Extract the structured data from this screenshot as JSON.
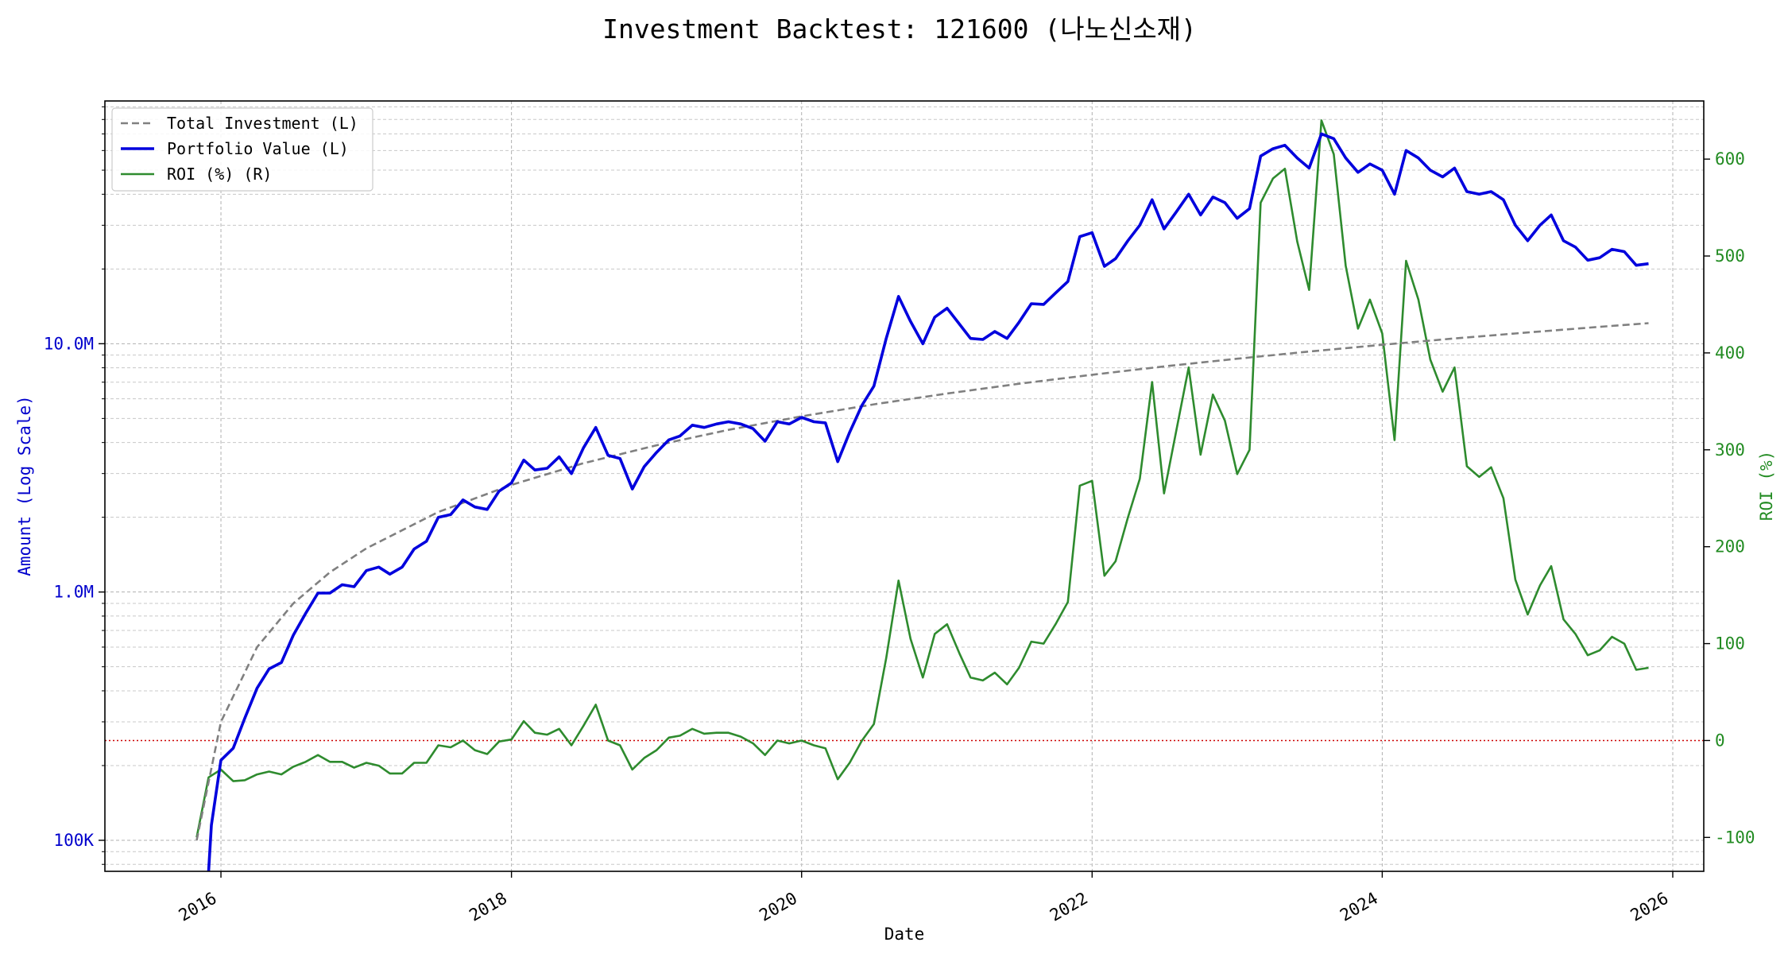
{
  "chart_data": {
    "type": "line",
    "title": "Investment Backtest: 121600 (나노신소재)",
    "xlabel": "Date",
    "ylabel_left": "Amount (Log Scale)",
    "ylabel_right": "ROI (%)",
    "y_left_scale": "log",
    "y_left_lim": [
      75000,
      95000000
    ],
    "y_right_lim": [
      -135,
      660
    ],
    "x_lim": [
      "2015-03-15",
      "2026-03-20"
    ],
    "x_ticks": [
      "2016",
      "2018",
      "2020",
      "2022",
      "2024",
      "2026"
    ],
    "y_left_ticks": [
      {
        "value": 100000,
        "label": "100K"
      },
      {
        "value": 1000000,
        "label": "1.0M"
      },
      {
        "value": 10000000,
        "label": "10.0M"
      }
    ],
    "y_right_ticks": [
      -100,
      0,
      100,
      200,
      300,
      400,
      500,
      600
    ],
    "reference_line": {
      "axis": "right",
      "value": 0,
      "style": "dotted",
      "color": "#cc0000"
    },
    "grid": true,
    "legend_position": "top-left",
    "legend": [
      "Total Investment (L)",
      "Portfolio Value (L)",
      "ROI (%) (R)"
    ],
    "colors": {
      "total_investment": "#808080",
      "portfolio_value": "#0000dd",
      "roi": "#2e8b2e",
      "left_axis": "#0000cc",
      "right_axis": "#228b22"
    },
    "total_investment": {
      "name": "Total Investment (L)",
      "x": [
        "2015-11-01",
        "2016-01-01",
        "2016-04-01",
        "2016-07-01",
        "2016-10-01",
        "2017-01-01",
        "2017-07-01",
        "2018-01-01",
        "2018-07-01",
        "2019-01-01",
        "2019-07-01",
        "2020-01-01",
        "2020-07-01",
        "2021-01-01",
        "2021-07-01",
        "2022-01-01",
        "2022-07-01",
        "2023-01-01",
        "2023-07-01",
        "2024-01-01",
        "2024-07-01",
        "2025-01-01",
        "2025-07-01",
        "2025-11-01"
      ],
      "values": [
        100000,
        300000,
        600000,
        900000,
        1200000,
        1500000,
        2100000,
        2700000,
        3300000,
        3900000,
        4500000,
        5100000,
        5700000,
        6300000,
        6900000,
        7500000,
        8100000,
        8700000,
        9300000,
        9900000,
        10500000,
        11100000,
        11700000,
        12100000
      ]
    },
    "portfolio_value": {
      "name": "Portfolio Value (L)",
      "x": [
        "2015-12-01",
        "2015-12-08",
        "2016-01-01",
        "2016-02-01",
        "2016-03-01",
        "2016-04-01",
        "2016-05-01",
        "2016-06-01",
        "2016-07-01",
        "2016-08-01",
        "2016-09-01",
        "2016-10-01",
        "2016-11-01",
        "2016-12-01",
        "2017-01-01",
        "2017-02-01",
        "2017-03-01",
        "2017-04-01",
        "2017-05-01",
        "2017-06-01",
        "2017-07-01",
        "2017-08-01",
        "2017-09-01",
        "2017-10-01",
        "2017-11-01",
        "2017-12-01",
        "2018-01-01",
        "2018-02-01",
        "2018-03-01",
        "2018-04-01",
        "2018-05-01",
        "2018-06-01",
        "2018-07-01",
        "2018-08-01",
        "2018-09-01",
        "2018-10-01",
        "2018-11-01",
        "2018-12-01",
        "2019-01-01",
        "2019-02-01",
        "2019-03-01",
        "2019-04-01",
        "2019-05-01",
        "2019-06-01",
        "2019-07-01",
        "2019-08-01",
        "2019-09-01",
        "2019-10-01",
        "2019-11-01",
        "2019-12-01",
        "2020-01-01",
        "2020-02-01",
        "2020-03-01",
        "2020-04-01",
        "2020-05-01",
        "2020-06-01",
        "2020-07-01",
        "2020-08-01",
        "2020-09-01",
        "2020-10-01",
        "2020-11-01",
        "2020-12-01",
        "2021-01-01",
        "2021-02-01",
        "2021-03-01",
        "2021-04-01",
        "2021-05-01",
        "2021-06-01",
        "2021-07-01",
        "2021-08-01",
        "2021-09-01",
        "2021-10-01",
        "2021-11-01",
        "2021-12-01",
        "2022-01-01",
        "2022-02-01",
        "2022-03-01",
        "2022-04-01",
        "2022-05-01",
        "2022-06-01",
        "2022-07-01",
        "2022-08-01",
        "2022-09-01",
        "2022-10-01",
        "2022-11-01",
        "2022-12-01",
        "2023-01-01",
        "2023-02-01",
        "2023-03-01",
        "2023-04-01",
        "2023-05-01",
        "2023-06-01",
        "2023-07-01",
        "2023-08-01",
        "2023-09-01",
        "2023-10-01",
        "2023-11-01",
        "2023-12-01",
        "2024-01-01",
        "2024-02-01",
        "2024-03-01",
        "2024-04-01",
        "2024-05-01",
        "2024-06-01",
        "2024-07-01",
        "2024-08-01",
        "2024-09-01",
        "2024-10-01",
        "2024-11-01",
        "2024-12-01",
        "2025-01-01",
        "2025-02-01",
        "2025-03-01",
        "2025-04-01",
        "2025-05-01",
        "2025-06-01",
        "2025-07-01",
        "2025-08-01",
        "2025-09-01",
        "2025-10-01",
        "2025-11-01"
      ],
      "values": [
        40000,
        115000,
        210000,
        235000,
        310000,
        410000,
        490000,
        520000,
        670000,
        820000,
        990000,
        990000,
        1070000,
        1050000,
        1220000,
        1260000,
        1180000,
        1260000,
        1490000,
        1600000,
        2000000,
        2050000,
        2350000,
        2200000,
        2150000,
        2550000,
        2750000,
        3400000,
        3100000,
        3150000,
        3500000,
        3000000,
        3800000,
        4600000,
        3550000,
        3450000,
        2600000,
        3200000,
        3650000,
        4100000,
        4250000,
        4700000,
        4600000,
        4750000,
        4850000,
        4750000,
        4550000,
        4050000,
        4850000,
        4750000,
        5050000,
        4850000,
        4800000,
        3350000,
        4400000,
        5650000,
        6750000,
        10500000,
        15500000,
        12300000,
        10000000,
        12800000,
        13900000,
        12000000,
        10500000,
        10400000,
        11200000,
        10500000,
        12200000,
        14500000,
        14400000,
        16000000,
        17800000,
        27000000,
        28000000,
        20500000,
        22000000,
        26000000,
        30000000,
        38000000,
        29000000,
        34000000,
        40000000,
        33000000,
        39000000,
        37000000,
        32000000,
        35000000,
        57000000,
        61000000,
        63000000,
        56000000,
        51000000,
        70000000,
        67000000,
        56000000,
        49000000,
        53000000,
        50000000,
        40000000,
        60000000,
        56000000,
        50000000,
        47000000,
        51000000,
        41000000,
        40000000,
        41000000,
        38000000,
        30000000,
        26000000,
        30000000,
        33000000,
        26000000,
        24500000,
        21700000,
        22200000,
        24000000,
        23500000,
        20700000,
        21000000
      ]
    },
    "roi": {
      "name": "ROI (%) (R)",
      "x": [
        "2015-11-01",
        "2015-12-01",
        "2016-01-01",
        "2016-02-01",
        "2016-03-01",
        "2016-04-01",
        "2016-05-01",
        "2016-06-01",
        "2016-07-01",
        "2016-08-01",
        "2016-09-01",
        "2016-10-01",
        "2016-11-01",
        "2016-12-01",
        "2017-01-01",
        "2017-02-01",
        "2017-03-01",
        "2017-04-01",
        "2017-05-01",
        "2017-06-01",
        "2017-07-01",
        "2017-08-01",
        "2017-09-01",
        "2017-10-01",
        "2017-11-01",
        "2017-12-01",
        "2018-01-01",
        "2018-02-01",
        "2018-03-01",
        "2018-04-01",
        "2018-05-01",
        "2018-06-01",
        "2018-07-01",
        "2018-08-01",
        "2018-09-01",
        "2018-10-01",
        "2018-11-01",
        "2018-12-01",
        "2019-01-01",
        "2019-02-01",
        "2019-03-01",
        "2019-04-01",
        "2019-05-01",
        "2019-06-01",
        "2019-07-01",
        "2019-08-01",
        "2019-09-01",
        "2019-10-01",
        "2019-11-01",
        "2019-12-01",
        "2020-01-01",
        "2020-02-01",
        "2020-03-01",
        "2020-04-01",
        "2020-05-01",
        "2020-06-01",
        "2020-07-01",
        "2020-08-01",
        "2020-09-01",
        "2020-10-01",
        "2020-11-01",
        "2020-12-01",
        "2021-01-01",
        "2021-02-01",
        "2021-03-01",
        "2021-04-01",
        "2021-05-01",
        "2021-06-01",
        "2021-07-01",
        "2021-08-01",
        "2021-09-01",
        "2021-10-01",
        "2021-11-01",
        "2021-12-01",
        "2022-01-01",
        "2022-02-01",
        "2022-03-01",
        "2022-04-01",
        "2022-05-01",
        "2022-06-01",
        "2022-07-01",
        "2022-08-01",
        "2022-09-01",
        "2022-10-01",
        "2022-11-01",
        "2022-12-01",
        "2023-01-01",
        "2023-02-01",
        "2023-03-01",
        "2023-04-01",
        "2023-05-01",
        "2023-06-01",
        "2023-07-01",
        "2023-08-01",
        "2023-09-01",
        "2023-10-01",
        "2023-11-01",
        "2023-12-01",
        "2024-01-01",
        "2024-02-01",
        "2024-03-01",
        "2024-04-01",
        "2024-05-01",
        "2024-06-01",
        "2024-07-01",
        "2024-08-01",
        "2024-09-01",
        "2024-10-01",
        "2024-11-01",
        "2024-12-01",
        "2025-01-01",
        "2025-02-01",
        "2025-03-01",
        "2025-04-01",
        "2025-05-01",
        "2025-06-01",
        "2025-07-01",
        "2025-08-01",
        "2025-09-01",
        "2025-10-01",
        "2025-11-01"
      ],
      "values": [
        -100,
        -38,
        -30,
        -42,
        -41,
        -35,
        -32,
        -35,
        -27,
        -22,
        -15,
        -22,
        -22,
        -28,
        -23,
        -26,
        -34,
        -34,
        -23,
        -23,
        -5,
        -7,
        0,
        -10,
        -14,
        -1,
        1,
        20,
        8,
        6,
        12,
        -5,
        15,
        37,
        0,
        -5,
        -30,
        -18,
        -10,
        3,
        5,
        12,
        7,
        8,
        8,
        4,
        -3,
        -15,
        0,
        -3,
        0,
        -5,
        -8,
        -40,
        -23,
        0,
        17,
        85,
        165,
        105,
        65,
        110,
        120,
        90,
        65,
        62,
        70,
        58,
        75,
        102,
        100,
        120,
        143,
        263,
        268,
        170,
        185,
        230,
        270,
        370,
        255,
        320,
        385,
        295,
        357,
        330,
        275,
        300,
        555,
        580,
        590,
        515,
        465,
        640,
        605,
        490,
        425,
        455,
        420,
        310,
        495,
        455,
        393,
        360,
        385,
        283,
        272,
        282,
        250,
        166,
        130,
        160,
        180,
        125,
        110,
        88,
        93,
        107,
        100,
        73,
        75
      ]
    }
  }
}
